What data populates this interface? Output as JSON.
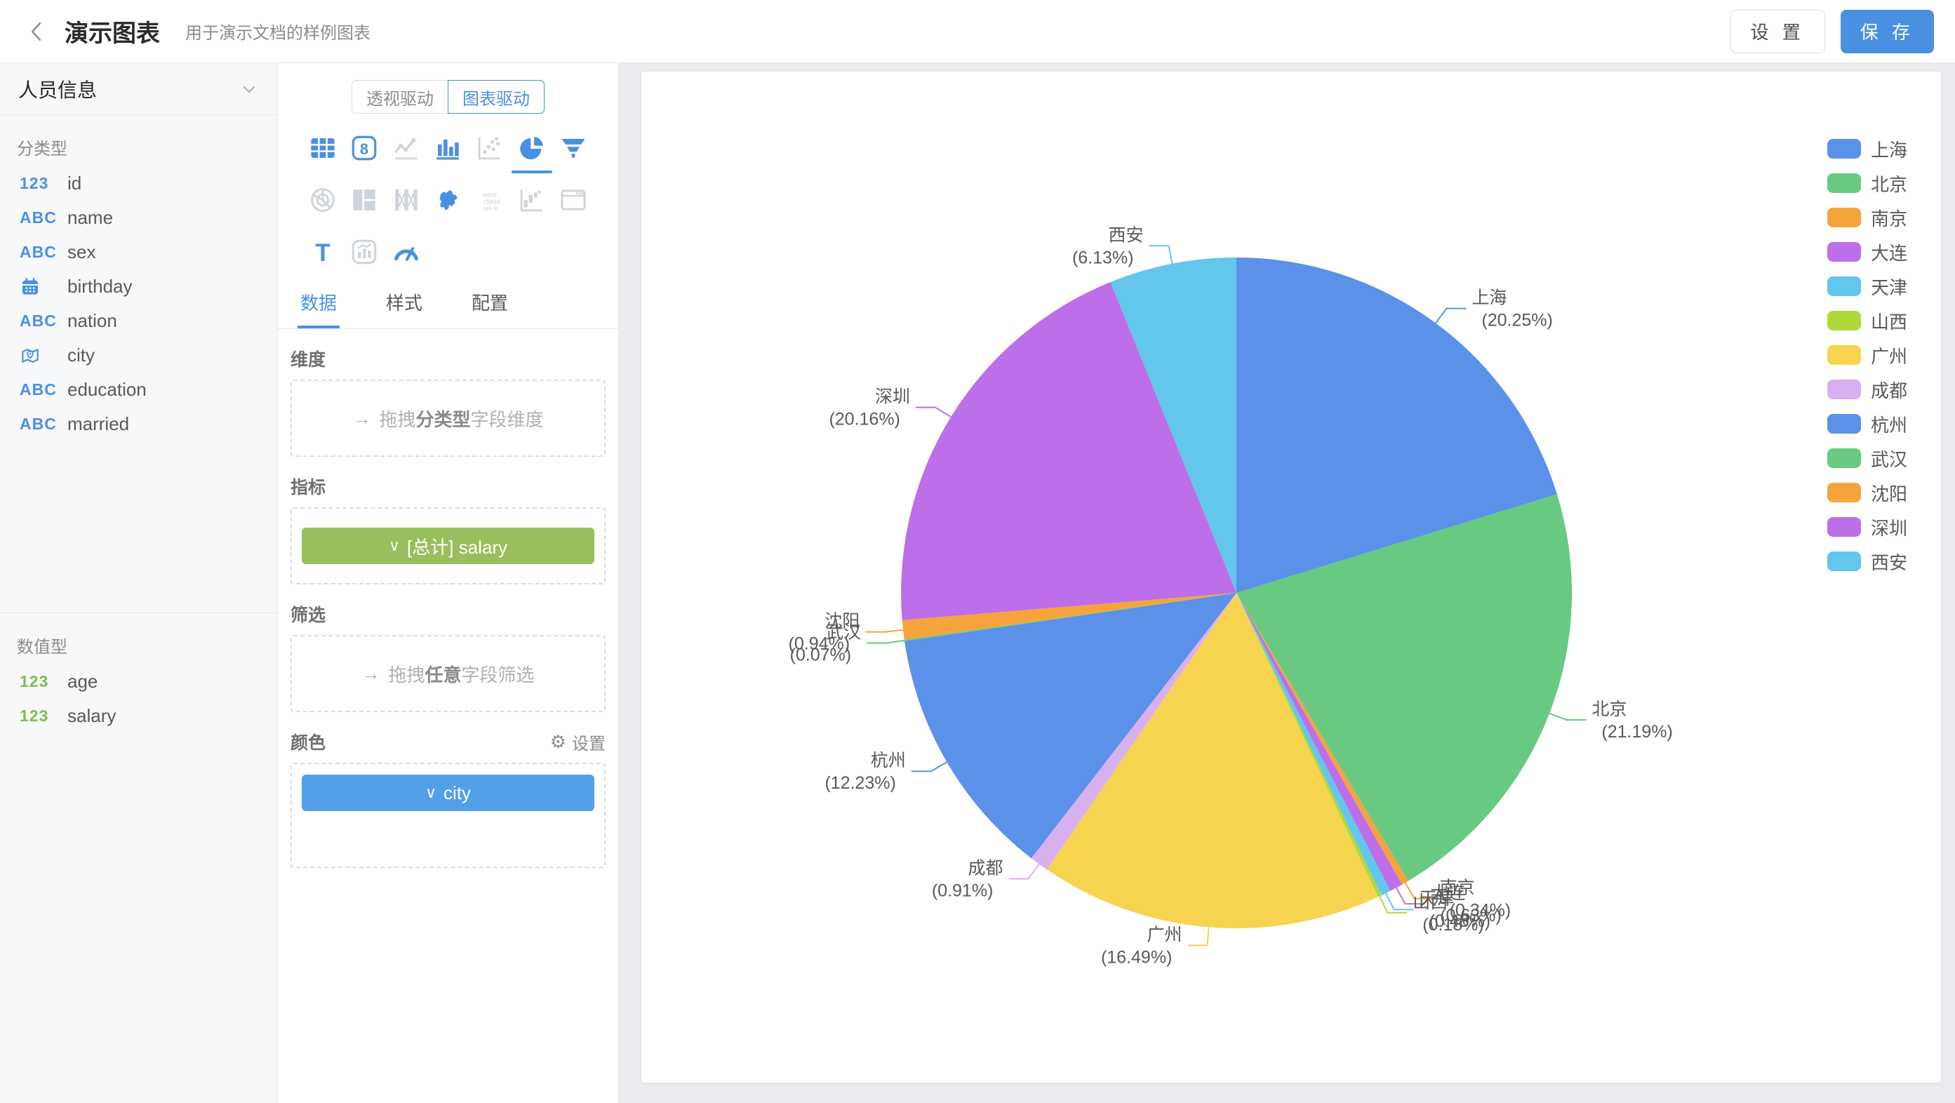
{
  "header": {
    "title": "演示图表",
    "subtitle": "用于演示文档的样例图表",
    "settings_label": "设 置",
    "save_label": "保 存",
    "save_color": "#4A90E2"
  },
  "sidebar": {
    "dataset_name": "人员信息",
    "sections": [
      {
        "label": "分类型",
        "fields": [
          {
            "icon": "123",
            "tone": "blue",
            "name": "id"
          },
          {
            "icon": "ABC",
            "tone": "blue",
            "name": "name"
          },
          {
            "icon": "ABC",
            "tone": "blue",
            "name": "sex"
          },
          {
            "icon": "calendar",
            "tone": "blue",
            "name": "birthday"
          },
          {
            "icon": "ABC",
            "tone": "blue",
            "name": "nation"
          },
          {
            "icon": "location",
            "tone": "blue",
            "name": "city"
          },
          {
            "icon": "ABC",
            "tone": "blue",
            "name": "education"
          },
          {
            "icon": "ABC",
            "tone": "blue",
            "name": "married"
          }
        ]
      },
      {
        "label": "数值型",
        "fields": [
          {
            "icon": "123",
            "tone": "green",
            "name": "age"
          },
          {
            "icon": "123",
            "tone": "green",
            "name": "salary"
          }
        ]
      }
    ]
  },
  "panel": {
    "toggle": {
      "options": [
        {
          "label": "透视驱动",
          "selected": false
        },
        {
          "label": "图表驱动",
          "selected": true
        }
      ]
    },
    "chart_types": [
      {
        "name": "table",
        "state": "blue"
      },
      {
        "name": "indicator",
        "state": "blue"
      },
      {
        "name": "line",
        "state": "disabled"
      },
      {
        "name": "bar",
        "state": "blue"
      },
      {
        "name": "scatter",
        "state": "disabled"
      },
      {
        "name": "pie",
        "state": "selected"
      },
      {
        "name": "funnel",
        "state": "blue"
      },
      {
        "name": "radar",
        "state": "disabled"
      },
      {
        "name": "treemap",
        "state": "disabled"
      },
      {
        "name": "fence",
        "state": "disabled"
      },
      {
        "name": "china-map",
        "state": "blue"
      },
      {
        "name": "word-cloud",
        "state": "disabled"
      },
      {
        "name": "bar-range",
        "state": "disabled"
      },
      {
        "name": "iframe",
        "state": "disabled"
      },
      {
        "name": "text",
        "state": "blue"
      },
      {
        "name": "chart-mix",
        "state": "disabled"
      },
      {
        "name": "gauge",
        "state": "blue"
      }
    ],
    "tabs": [
      {
        "label": "数据",
        "active": true
      },
      {
        "label": "样式",
        "active": false
      },
      {
        "label": "配置",
        "active": false
      }
    ],
    "dimension": {
      "label": "维度",
      "arrow": "→",
      "ph_pre": "拖拽",
      "ph_bold": "分类型",
      "ph_post": "字段维度"
    },
    "measure": {
      "label": "指标",
      "pill_chevron": "∨",
      "pill_label": "[总计] salary",
      "pill_color": "#99BE5E"
    },
    "filter": {
      "label": "筛选",
      "arrow": "→",
      "ph_pre": "拖拽",
      "ph_bold": "任意",
      "ph_post": "字段筛选"
    },
    "color": {
      "label": "颜色",
      "settings_label": "设置",
      "gear": "⚙",
      "pill_chevron": "∨",
      "pill_label": "city",
      "pill_color": "#54A0E8"
    }
  },
  "chart_data": {
    "type": "pie",
    "dimension": "city",
    "measure": "[总计] salary",
    "legend_position": "right",
    "label_format": "{name} ({percent}%)",
    "start_angle_deg": 0,
    "direction": "clockwise",
    "categories": [
      "上海",
      "北京",
      "南京",
      "大连",
      "天津",
      "山西",
      "广州",
      "成都",
      "杭州",
      "武汉",
      "沈阳",
      "深圳",
      "西安"
    ],
    "values": [
      20.25,
      21.19,
      0.34,
      0.63,
      0.48,
      0.18,
      16.49,
      0.91,
      12.23,
      0.07,
      0.94,
      20.16,
      6.13
    ],
    "unit": "%",
    "colors": [
      "#5B91E8",
      "#67CA80",
      "#F5A43C",
      "#BC6FE8",
      "#62C6ED",
      "#AFD938",
      "#F6D44F",
      "#D8B0F0",
      "#5B91E8",
      "#67CA80",
      "#F5A43C",
      "#BC6FE8",
      "#62C6ED"
    ]
  }
}
